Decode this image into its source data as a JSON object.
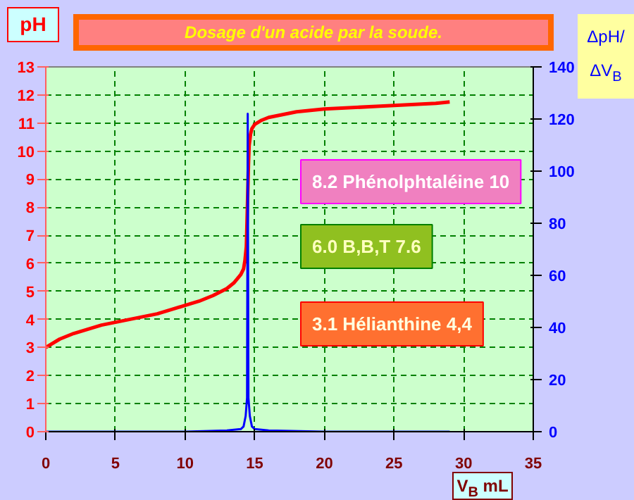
{
  "chart_data": {
    "type": "line",
    "title": "Dosage d'un acide  par la soude.",
    "xlabel": "V$_{B}$ mL",
    "ylabel": "pH",
    "y2label": "ΔpH/ΔV$_{B}$",
    "xlim": [
      0,
      35
    ],
    "xticks": [
      0,
      5,
      10,
      15,
      20,
      25,
      30,
      35
    ],
    "ylim": [
      0,
      13
    ],
    "yticks": [
      0,
      1,
      2,
      3,
      4,
      5,
      6,
      7,
      8,
      9,
      10,
      11,
      12,
      13
    ],
    "y2lim": [
      0,
      140
    ],
    "y2ticks": [
      0,
      20,
      40,
      60,
      80,
      100,
      120,
      140
    ],
    "grid": true,
    "marker": "none",
    "line_style": "solid",
    "series": [
      {
        "color": "#ff0000",
        "x": [
          0,
          1,
          2,
          3,
          4,
          5,
          6,
          7,
          8,
          9,
          10,
          11,
          12,
          13,
          13.5,
          14,
          14.2,
          14.3,
          14.4,
          14.45,
          14.5,
          14.55,
          14.6,
          14.7,
          14.8,
          15,
          15.5,
          16,
          17,
          18,
          19,
          20,
          22,
          24,
          26,
          28,
          29
        ],
        "values": [
          3.0,
          3.3,
          3.5,
          3.65,
          3.8,
          3.9,
          4.0,
          4.1,
          4.2,
          4.35,
          4.5,
          4.65,
          4.85,
          5.1,
          5.3,
          5.6,
          5.8,
          6.1,
          6.6,
          7.5,
          8.5,
          9.5,
          10.2,
          10.6,
          10.8,
          10.95,
          11.1,
          11.2,
          11.3,
          11.4,
          11.45,
          11.5,
          11.55,
          11.6,
          11.65,
          11.7,
          11.75
        ]
      },
      {
        "color": "#0000ff",
        "axis": "y2",
        "x": [
          0,
          5,
          10,
          13,
          14,
          14.2,
          14.35,
          14.45,
          14.5,
          14.55,
          14.65,
          14.8,
          15,
          16,
          20,
          25,
          29
        ],
        "values": [
          0,
          0,
          0,
          0.5,
          1,
          2,
          6,
          13,
          122,
          13,
          6,
          2,
          1,
          0.5,
          0,
          0,
          0
        ]
      }
    ],
    "annotations": [
      "8.2 Phénolphtaléine 10",
      "6.0 B,B,T 7.6",
      "3.1 Hélianthine 4,4"
    ]
  }
}
